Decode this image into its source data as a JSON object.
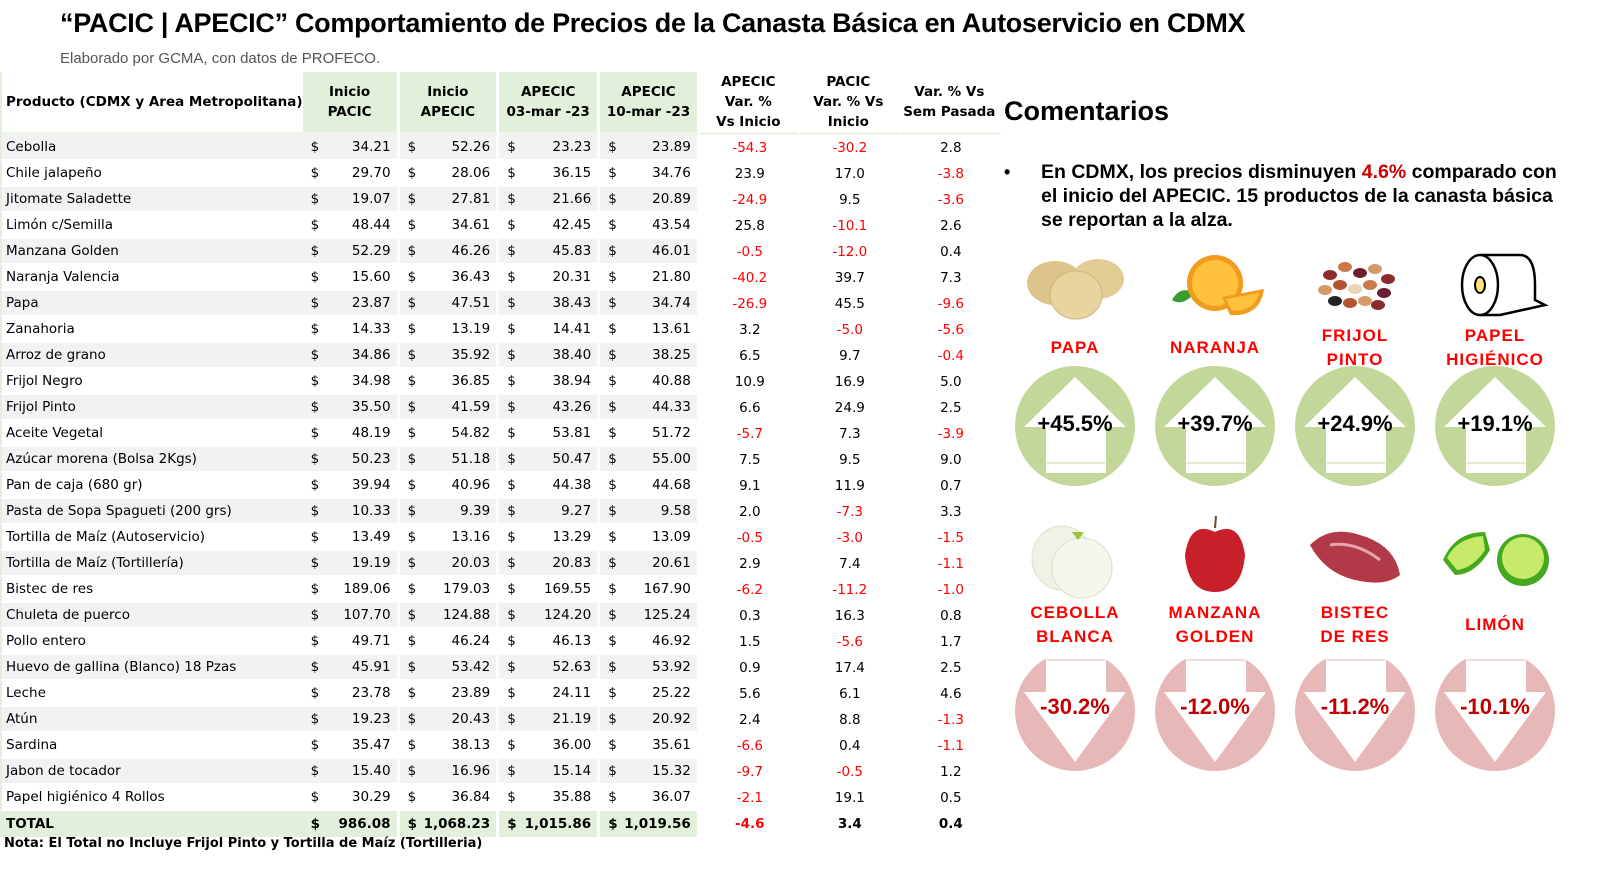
{
  "header": {
    "title": "“PACIC | APECIC” Comportamiento de Precios de la Canasta Básica en Autoservicio en CDMX",
    "subtitle": "Elaborado por GCMA, con datos de PROFECO."
  },
  "table": {
    "columns": {
      "product": "Producto (CDMX y Area Metropolitana)",
      "inicio_pacic": [
        "Inicio",
        "PACIC"
      ],
      "inicio_apecic": [
        "Inicio",
        "APECIC"
      ],
      "apecic_03": [
        "APECIC",
        "03-mar -23"
      ],
      "apecic_10": [
        "APECIC",
        "10-mar -23"
      ],
      "apecic_var": [
        "APECIC",
        "Var. %",
        "Vs  Inicio"
      ],
      "pacic_var": [
        "PACIC",
        "Var. % Vs",
        "Inicio"
      ],
      "sem_var": [
        "Var. % Vs",
        "Sem Pasada"
      ]
    },
    "currency_symbol": "$",
    "rows": [
      {
        "product": "Cebolla",
        "p1": "34.21",
        "p2": "52.26",
        "p3": "23.23",
        "p4": "23.89",
        "v1": "-54.3",
        "v2": "-30.2",
        "v3": "2.8"
      },
      {
        "product": "Chile jalapeño",
        "p1": "29.70",
        "p2": "28.06",
        "p3": "36.15",
        "p4": "34.76",
        "v1": "23.9",
        "v2": "17.0",
        "v3": "-3.8"
      },
      {
        "product": "Jitomate Saladette",
        "p1": "19.07",
        "p2": "27.81",
        "p3": "21.66",
        "p4": "20.89",
        "v1": "-24.9",
        "v2": "9.5",
        "v3": "-3.6"
      },
      {
        "product": "Limón c/Semilla",
        "p1": "48.44",
        "p2": "34.61",
        "p3": "42.45",
        "p4": "43.54",
        "v1": "25.8",
        "v2": "-10.1",
        "v3": "2.6"
      },
      {
        "product": "Manzana Golden",
        "p1": "52.29",
        "p2": "46.26",
        "p3": "45.83",
        "p4": "46.01",
        "v1": "-0.5",
        "v2": "-12.0",
        "v3": "0.4"
      },
      {
        "product": "Naranja Valencia",
        "p1": "15.60",
        "p2": "36.43",
        "p3": "20.31",
        "p4": "21.80",
        "v1": "-40.2",
        "v2": "39.7",
        "v3": "7.3"
      },
      {
        "product": "Papa",
        "p1": "23.87",
        "p2": "47.51",
        "p3": "38.43",
        "p4": "34.74",
        "v1": "-26.9",
        "v2": "45.5",
        "v3": "-9.6"
      },
      {
        "product": "Zanahoria",
        "p1": "14.33",
        "p2": "13.19",
        "p3": "14.41",
        "p4": "13.61",
        "v1": "3.2",
        "v2": "-5.0",
        "v3": "-5.6"
      },
      {
        "product": "Arroz de grano",
        "p1": "34.86",
        "p2": "35.92",
        "p3": "38.40",
        "p4": "38.25",
        "v1": "6.5",
        "v2": "9.7",
        "v3": "-0.4"
      },
      {
        "product": "Frijol Negro",
        "p1": "34.98",
        "p2": "36.85",
        "p3": "38.94",
        "p4": "40.88",
        "v1": "10.9",
        "v2": "16.9",
        "v3": "5.0"
      },
      {
        "product": "Frijol Pinto",
        "p1": "35.50",
        "p2": "41.59",
        "p3": "43.26",
        "p4": "44.33",
        "v1": "6.6",
        "v2": "24.9",
        "v3": "2.5"
      },
      {
        "product": "Aceite Vegetal",
        "p1": "48.19",
        "p2": "54.82",
        "p3": "53.81",
        "p4": "51.72",
        "v1": "-5.7",
        "v2": "7.3",
        "v3": "-3.9"
      },
      {
        "product": "Azúcar morena (Bolsa 2Kgs)",
        "p1": "50.23",
        "p2": "51.18",
        "p3": "50.47",
        "p4": "55.00",
        "v1": "7.5",
        "v2": "9.5",
        "v3": "9.0"
      },
      {
        "product": "Pan de caja (680 gr)",
        "p1": "39.94",
        "p2": "40.96",
        "p3": "44.38",
        "p4": "44.68",
        "v1": "9.1",
        "v2": "11.9",
        "v3": "0.7"
      },
      {
        "product": "Pasta de Sopa Spagueti (200 grs)",
        "p1": "10.33",
        "p2": "9.39",
        "p3": "9.27",
        "p4": "9.58",
        "v1": "2.0",
        "v2": "-7.3",
        "v3": "3.3"
      },
      {
        "product": "Tortilla de Maíz (Autoservicio)",
        "p1": "13.49",
        "p2": "13.16",
        "p3": "13.29",
        "p4": "13.09",
        "v1": "-0.5",
        "v2": "-3.0",
        "v3": "-1.5"
      },
      {
        "product": "Tortilla de Maíz (Tortillería)",
        "p1": "19.19",
        "p2": "20.03",
        "p3": "20.83",
        "p4": "20.61",
        "v1": "2.9",
        "v2": "7.4",
        "v3": "-1.1"
      },
      {
        "product": "Bistec de res",
        "p1": "189.06",
        "p2": "179.03",
        "p3": "169.55",
        "p4": "167.90",
        "v1": "-6.2",
        "v2": "-11.2",
        "v3": "-1.0"
      },
      {
        "product": "Chuleta de puerco",
        "p1": "107.70",
        "p2": "124.88",
        "p3": "124.20",
        "p4": "125.24",
        "v1": "0.3",
        "v2": "16.3",
        "v3": "0.8"
      },
      {
        "product": "Pollo entero",
        "p1": "49.71",
        "p2": "46.24",
        "p3": "46.13",
        "p4": "46.92",
        "v1": "1.5",
        "v2": "-5.6",
        "v3": "1.7"
      },
      {
        "product": "Huevo de gallina (Blanco) 18 Pzas",
        "p1": "45.91",
        "p2": "53.42",
        "p3": "52.63",
        "p4": "53.92",
        "v1": "0.9",
        "v2": "17.4",
        "v3": "2.5"
      },
      {
        "product": "Leche",
        "p1": "23.78",
        "p2": "23.89",
        "p3": "24.11",
        "p4": "25.22",
        "v1": "5.6",
        "v2": "6.1",
        "v3": "4.6"
      },
      {
        "product": "Atún",
        "p1": "19.23",
        "p2": "20.43",
        "p3": "21.19",
        "p4": "20.92",
        "v1": "2.4",
        "v2": "8.8",
        "v3": "-1.3"
      },
      {
        "product": "Sardina",
        "p1": "35.47",
        "p2": "38.13",
        "p3": "36.00",
        "p4": "35.61",
        "v1": "-6.6",
        "v2": "0.4",
        "v3": "-1.1"
      },
      {
        "product": "Jabon de tocador",
        "p1": "15.40",
        "p2": "16.96",
        "p3": "15.14",
        "p4": "15.32",
        "v1": "-9.7",
        "v2": "-0.5",
        "v3": "1.2"
      },
      {
        "product": "Papel higiénico 4 Rollos",
        "p1": "30.29",
        "p2": "36.84",
        "p3": "35.88",
        "p4": "36.07",
        "v1": "-2.1",
        "v2": "19.1",
        "v3": "0.5"
      }
    ],
    "total": {
      "product": "TOTAL",
      "p1": "986.08",
      "p2": "1,068.23",
      "p3": "1,015.86",
      "p4": "1,019.56",
      "v1": "-4.6",
      "v2": "3.4",
      "v3": "0.4"
    },
    "note": "Nota: El Total no Incluye Frijol Pinto y Tortilla de Maíz (Tortilleria)"
  },
  "comments": {
    "title": "Comentarios",
    "bullet_pre": "En CDMX, los precios disminuyen ",
    "bullet_highlight": "4.6%",
    "bullet_post": " comparado con el inicio del APECIC. 15 productos de la canasta básica se reportan a la alza.",
    "increases": [
      {
        "name": [
          "PAPA"
        ],
        "pct": "+45.5%",
        "icon": "potato-icon"
      },
      {
        "name": [
          "NARANJA"
        ],
        "pct": "+39.7%",
        "icon": "orange-icon"
      },
      {
        "name": [
          "FRIJOL",
          "PINTO"
        ],
        "pct": "+24.9%",
        "icon": "beans-icon"
      },
      {
        "name": [
          "PAPEL",
          "HIGIÉNICO"
        ],
        "pct": "+19.1%",
        "icon": "toilet-paper-icon"
      }
    ],
    "decreases": [
      {
        "name": [
          "CEBOLLA",
          "BLANCA"
        ],
        "pct": "-30.2%",
        "icon": "onion-icon"
      },
      {
        "name": [
          "MANZANA",
          "GOLDEN"
        ],
        "pct": "-12.0%",
        "icon": "apple-icon"
      },
      {
        "name": [
          "BISTEC",
          "DE RES"
        ],
        "pct": "-11.2%",
        "icon": "steak-icon"
      },
      {
        "name": [
          "LIMÓN"
        ],
        "pct": "-10.1%",
        "icon": "lime-icon"
      }
    ]
  },
  "colors": {
    "header_green": "#e2efda",
    "negative": "#ff0000",
    "up_circle": "#c4d79b",
    "down_circle": "#e6b8b7",
    "down_text": "#c00000"
  }
}
